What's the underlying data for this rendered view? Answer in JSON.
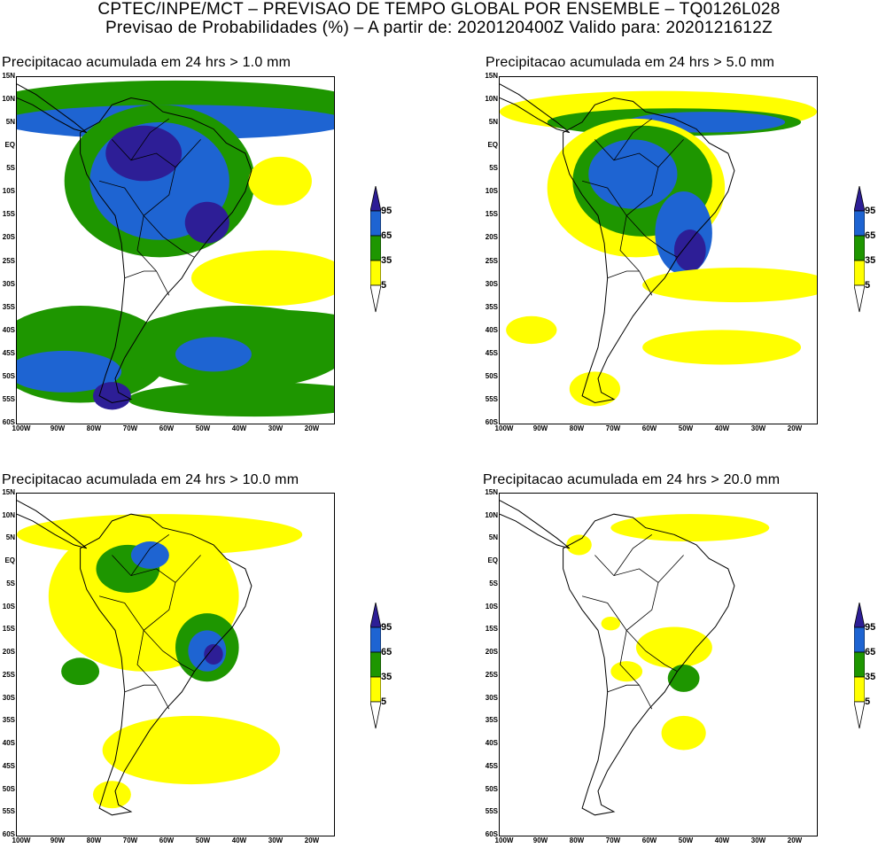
{
  "header": {
    "line1": "CPTEC/INPE/MCT – PREVISAO DE TEMPO GLOBAL POR ENSEMBLE – TQ0126L028",
    "line2": "Previsao de Probabilidades (%) –   A partir de: 2020120400Z  Valido para: 2020121612Z"
  },
  "colors": {
    "yellow": "#ffff00",
    "green": "#1e9600",
    "blue": "#1e64d2",
    "navy": "#2d1e96",
    "background": "#ffffff",
    "outline": "#000000"
  },
  "panels": [
    {
      "title": "Precipitacao acumulada em 24 hrs > 1.0 mm",
      "intensity": "very-high"
    },
    {
      "title": "Precipitacao acumulada em 24 hrs > 5.0 mm",
      "intensity": "high"
    },
    {
      "title": "Precipitacao acumulada em 24 hrs > 10.0 mm",
      "intensity": "medium"
    },
    {
      "title": "Precipitacao acumulada em 24 hrs > 20.0 mm",
      "intensity": "low"
    }
  ],
  "axes": {
    "lat_labels": [
      "15N",
      "10N",
      "5N",
      "EQ",
      "5S",
      "10S",
      "15S",
      "20S",
      "25S",
      "30S",
      "35S",
      "40S",
      "45S",
      "50S",
      "55S",
      "60S"
    ],
    "lon_labels": [
      "100W",
      "90W",
      "80W",
      "70W",
      "60W",
      "50W",
      "40W",
      "30W",
      "20W"
    ]
  },
  "legend": {
    "labels": [
      "95",
      "65",
      "35",
      "5"
    ]
  }
}
